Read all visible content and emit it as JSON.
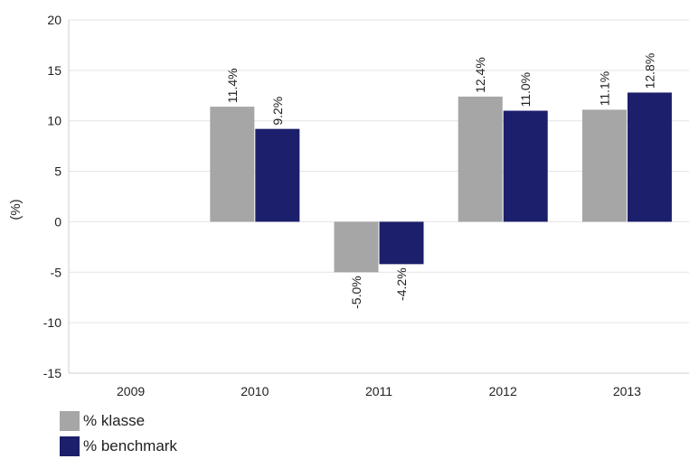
{
  "chart_data": {
    "type": "bar",
    "categories": [
      "2009",
      "2010",
      "2011",
      "2012",
      "2013"
    ],
    "series": [
      {
        "name": "% klasse",
        "values": [
          null,
          11.4,
          -5.0,
          12.4,
          11.1
        ],
        "labels": [
          "",
          "11.4%",
          "-5.0%",
          "12.4%",
          "11.1%"
        ],
        "color": "#a6a6a6"
      },
      {
        "name": "% benchmark",
        "values": [
          null,
          9.2,
          -4.2,
          11.0,
          12.8
        ],
        "labels": [
          "",
          "9.2%",
          "-4.2%",
          "11.0%",
          "12.8%"
        ],
        "color": "#1c1f6b"
      }
    ],
    "ylabel": "(%)",
    "ylim": [
      -15,
      20
    ],
    "yticks": [
      "-15",
      "-10",
      "-5",
      "0",
      "5",
      "10",
      "15",
      "20"
    ],
    "grid": true,
    "legend": "bottom-left"
  }
}
